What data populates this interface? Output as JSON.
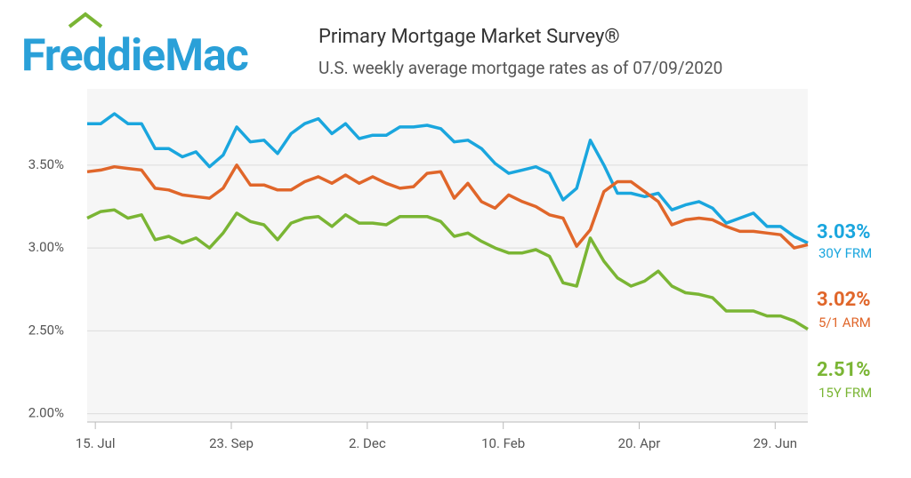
{
  "logo": "FreddieMac",
  "chart_data": {
    "type": "line",
    "title": "Primary Mortgage Market Survey®",
    "subtitle": "U.S. weekly average mortgage rates as of 07/09/2020",
    "x": [
      0,
      1,
      2,
      3,
      4,
      5,
      6,
      7,
      8,
      9,
      10,
      11,
      12,
      13,
      14,
      15,
      16,
      17,
      18,
      19,
      20,
      21,
      22,
      23,
      24,
      25,
      26,
      27,
      28,
      29,
      30,
      31,
      32,
      33,
      34,
      35,
      36,
      37,
      38,
      39,
      40,
      41,
      42,
      43,
      44,
      45,
      46,
      47,
      48,
      49,
      50,
      51,
      52,
      53
    ],
    "xlim": [
      0,
      53
    ],
    "xticks": [
      {
        "value": 0.6,
        "label": "15. Jul"
      },
      {
        "value": 10.6,
        "label": "23. Sep"
      },
      {
        "value": 20.6,
        "label": "2. Dec"
      },
      {
        "value": 30.6,
        "label": "10. Feb"
      },
      {
        "value": 40.6,
        "label": "20. Apr"
      },
      {
        "value": 50.6,
        "label": "29. Jun"
      }
    ],
    "ylim": [
      1.95,
      3.96
    ],
    "yticks": [
      {
        "value": 2,
        "label": "2.00%"
      },
      {
        "value": 2.5,
        "label": "2.50%"
      },
      {
        "value": 3,
        "label": "3.00%"
      },
      {
        "value": 3.5,
        "label": "3.50%"
      }
    ],
    "grid": true,
    "series": [
      {
        "name": "30Y FRM",
        "color": "#1aa6de",
        "label": "3.03%",
        "values": [
          3.75,
          3.75,
          3.81,
          3.75,
          3.75,
          3.6,
          3.6,
          3.55,
          3.58,
          3.49,
          3.56,
          3.73,
          3.64,
          3.65,
          3.57,
          3.69,
          3.75,
          3.78,
          3.69,
          3.75,
          3.66,
          3.68,
          3.68,
          3.73,
          3.73,
          3.74,
          3.72,
          3.64,
          3.65,
          3.6,
          3.51,
          3.45,
          3.47,
          3.49,
          3.45,
          3.29,
          3.36,
          3.65,
          3.5,
          3.33,
          3.33,
          3.31,
          3.33,
          3.23,
          3.26,
          3.28,
          3.24,
          3.15,
          3.18,
          3.21,
          3.13,
          3.13,
          3.07,
          3.03
        ]
      },
      {
        "name": "5/1 ARM",
        "color": "#e0662a",
        "label": "3.02%",
        "values": [
          3.46,
          3.47,
          3.49,
          3.48,
          3.47,
          3.36,
          3.35,
          3.32,
          3.31,
          3.3,
          3.36,
          3.5,
          3.38,
          3.38,
          3.35,
          3.35,
          3.4,
          3.43,
          3.39,
          3.44,
          3.39,
          3.43,
          3.39,
          3.36,
          3.37,
          3.45,
          3.46,
          3.3,
          3.39,
          3.28,
          3.24,
          3.32,
          3.28,
          3.25,
          3.2,
          3.18,
          3.01,
          3.11,
          3.34,
          3.4,
          3.4,
          3.34,
          3.28,
          3.14,
          3.17,
          3.18,
          3.17,
          3.13,
          3.1,
          3.1,
          3.09,
          3.08,
          3.0,
          3.02
        ]
      },
      {
        "name": "15Y FRM",
        "color": "#7ab534",
        "label": "2.51%",
        "values": [
          3.18,
          3.22,
          3.23,
          3.18,
          3.2,
          3.05,
          3.07,
          3.03,
          3.06,
          3.0,
          3.09,
          3.21,
          3.16,
          3.14,
          3.05,
          3.15,
          3.18,
          3.19,
          3.13,
          3.2,
          3.15,
          3.15,
          3.14,
          3.19,
          3.19,
          3.19,
          3.16,
          3.07,
          3.09,
          3.04,
          3.0,
          2.97,
          2.97,
          2.99,
          2.95,
          2.79,
          2.77,
          3.06,
          2.92,
          2.82,
          2.77,
          2.8,
          2.86,
          2.77,
          2.73,
          2.72,
          2.7,
          2.62,
          2.62,
          2.62,
          2.59,
          2.59,
          2.56,
          2.51
        ]
      }
    ]
  }
}
